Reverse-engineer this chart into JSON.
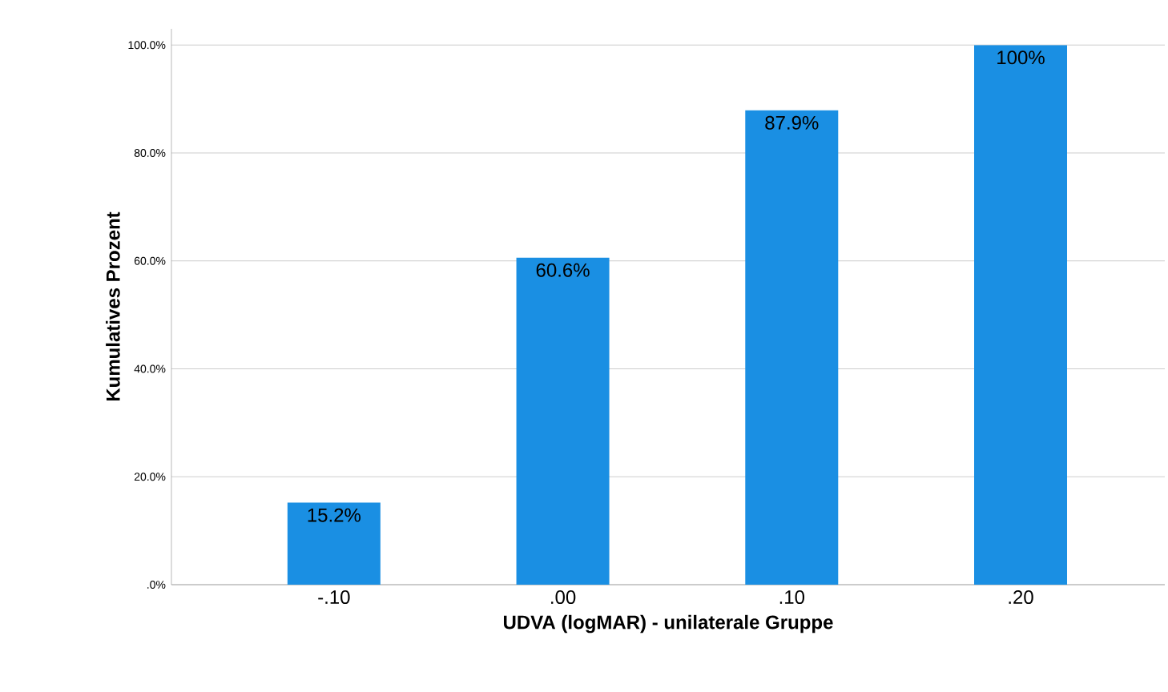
{
  "chart_data": {
    "type": "bar",
    "xlabel": "UDVA (logMAR) - unilaterale Gruppe",
    "ylabel": "Kumulatives Prozent",
    "categories": [
      "-.10",
      ".00",
      ".10",
      ".20"
    ],
    "values": [
      15.2,
      60.6,
      87.9,
      100
    ],
    "value_labels": [
      "15.2%",
      "60.6%",
      "87.9%",
      "100%"
    ],
    "color": "#1a8fe3",
    "ylim": [
      0,
      103
    ],
    "yticks": [
      {
        "value": 0,
        "label": ".0%"
      },
      {
        "value": 20,
        "label": "20.0%"
      },
      {
        "value": 40,
        "label": "40.0%"
      },
      {
        "value": 60,
        "label": "60.0%"
      },
      {
        "value": 80,
        "label": "80.0%"
      },
      {
        "value": 100,
        "label": "100.0%"
      }
    ],
    "grid": "y"
  }
}
